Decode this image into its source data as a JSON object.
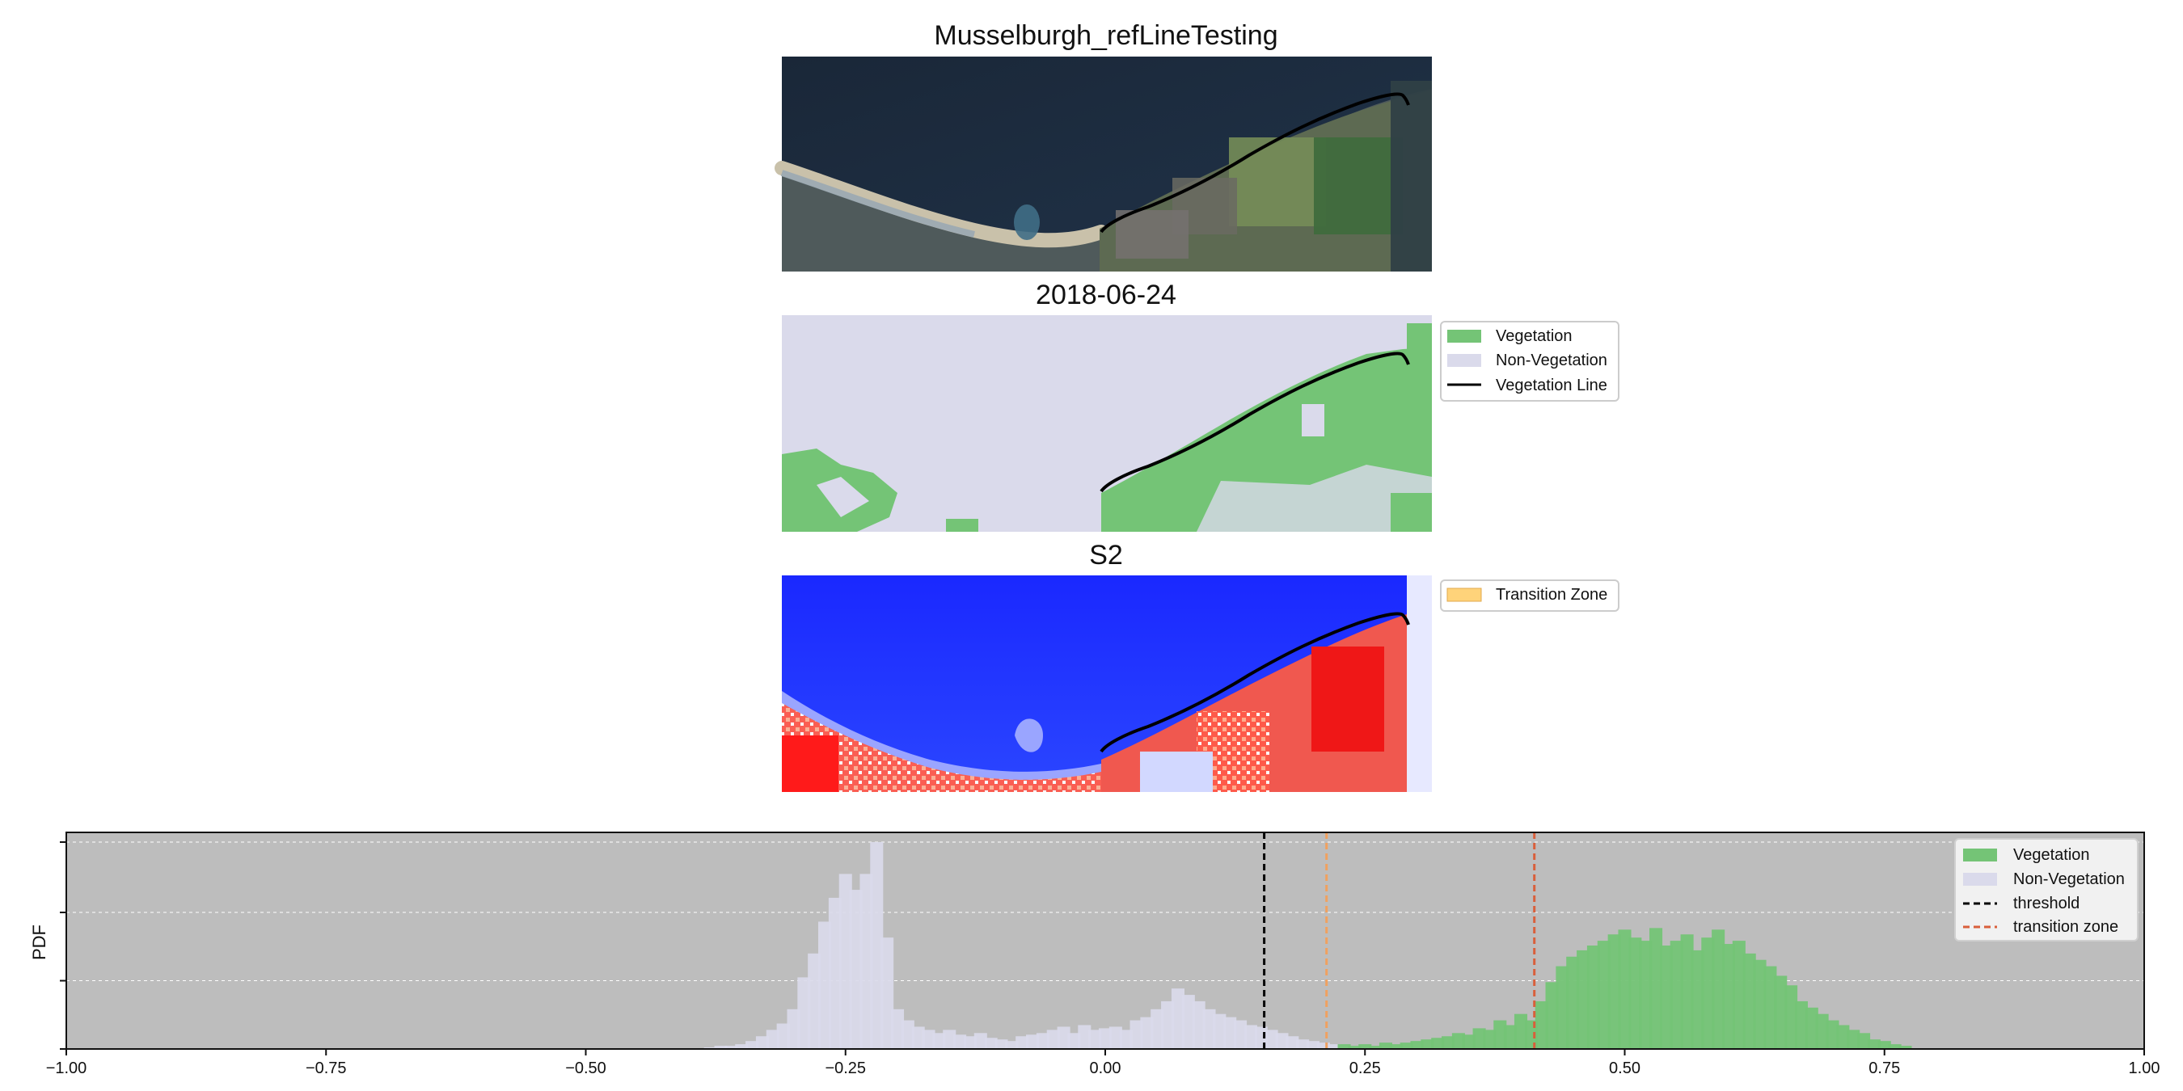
{
  "panels": [
    {
      "title": "Musselburgh_refLineTesting",
      "kind": "rgb-image"
    },
    {
      "title": "2018-06-24",
      "kind": "classification-map"
    },
    {
      "title": "S2",
      "kind": "index-map"
    }
  ],
  "class_legend": {
    "items": [
      {
        "label": "Vegetation",
        "type": "patch",
        "color": "#74c476"
      },
      {
        "label": "Non-Vegetation",
        "type": "patch",
        "color": "#dadaeb"
      },
      {
        "label": "Vegetation Line",
        "type": "line",
        "color": "#000000"
      }
    ]
  },
  "index_legend": {
    "items": [
      {
        "label": "Transition Zone",
        "type": "patch",
        "color": "#ffd37a"
      }
    ]
  },
  "colors": {
    "vegetation": "#74c476",
    "non_vegetation": "#dadaeb",
    "threshold": "#000000",
    "transition_zone": "#d95f3b",
    "transition_fill": "#ffd37a",
    "histogram_background": "#bdbdbd",
    "water_dark": "#1b2a3b",
    "index_low": "#1f2cff",
    "index_high": "#ff1f1f"
  },
  "chart_data": {
    "type": "histogram",
    "xlim": [
      -1.0,
      1.0
    ],
    "x_ticks": [
      -1.0,
      -0.75,
      -0.5,
      -0.25,
      0.0,
      0.25,
      0.5,
      0.75,
      1.0
    ],
    "x_tick_labels": [
      "−1.00",
      "−0.75",
      "−0.50",
      "−0.25",
      "0.00",
      "0.25",
      "0.50",
      "0.75",
      "1.00"
    ],
    "ylabel": "PDF",
    "grid": "horizontal, dashed, white",
    "legend_position": "top-right",
    "bin_width": 0.0125,
    "threshold": 0.153,
    "transition_zone": [
      0.213,
      0.413
    ],
    "series": [
      {
        "name": "Vegetation",
        "color": "#74c476",
        "bins": [
          [
            0.23,
            3
          ],
          [
            0.24,
            2
          ],
          [
            0.25,
            3
          ],
          [
            0.26,
            2
          ],
          [
            0.27,
            4
          ],
          [
            0.28,
            3
          ],
          [
            0.29,
            4
          ],
          [
            0.3,
            5
          ],
          [
            0.31,
            6
          ],
          [
            0.32,
            7
          ],
          [
            0.33,
            8
          ],
          [
            0.34,
            10
          ],
          [
            0.35,
            9
          ],
          [
            0.36,
            13
          ],
          [
            0.37,
            12
          ],
          [
            0.38,
            18
          ],
          [
            0.39,
            15
          ],
          [
            0.4,
            22
          ],
          [
            0.41,
            18
          ],
          [
            0.42,
            30
          ],
          [
            0.43,
            42
          ],
          [
            0.44,
            52
          ],
          [
            0.45,
            58
          ],
          [
            0.46,
            62
          ],
          [
            0.47,
            65
          ],
          [
            0.48,
            68
          ],
          [
            0.49,
            72
          ],
          [
            0.5,
            75
          ],
          [
            0.51,
            70
          ],
          [
            0.52,
            68
          ],
          [
            0.53,
            76
          ],
          [
            0.54,
            65
          ],
          [
            0.55,
            68
          ],
          [
            0.56,
            72
          ],
          [
            0.57,
            62
          ],
          [
            0.58,
            70
          ],
          [
            0.59,
            75
          ],
          [
            0.6,
            66
          ],
          [
            0.61,
            68
          ],
          [
            0.62,
            60
          ],
          [
            0.63,
            56
          ],
          [
            0.64,
            52
          ],
          [
            0.65,
            46
          ],
          [
            0.66,
            40
          ],
          [
            0.67,
            30
          ],
          [
            0.68,
            26
          ],
          [
            0.69,
            22
          ],
          [
            0.7,
            18
          ],
          [
            0.71,
            15
          ],
          [
            0.72,
            12
          ],
          [
            0.73,
            10
          ],
          [
            0.74,
            6
          ],
          [
            0.75,
            5
          ],
          [
            0.76,
            3
          ],
          [
            0.77,
            2
          ]
        ]
      },
      {
        "name": "Non-Vegetation",
        "color": "#dadaeb",
        "bins": [
          [
            -0.38,
            1
          ],
          [
            -0.37,
            2
          ],
          [
            -0.36,
            2
          ],
          [
            -0.35,
            3
          ],
          [
            -0.34,
            5
          ],
          [
            -0.33,
            8
          ],
          [
            -0.32,
            12
          ],
          [
            -0.31,
            16
          ],
          [
            -0.3,
            25
          ],
          [
            -0.29,
            45
          ],
          [
            -0.28,
            60
          ],
          [
            -0.27,
            80
          ],
          [
            -0.26,
            95
          ],
          [
            -0.25,
            110
          ],
          [
            -0.24,
            100
          ],
          [
            -0.23,
            110
          ],
          [
            -0.22,
            130
          ],
          [
            -0.21,
            70
          ],
          [
            -0.2,
            25
          ],
          [
            -0.19,
            18
          ],
          [
            -0.18,
            14
          ],
          [
            -0.17,
            12
          ],
          [
            -0.16,
            10
          ],
          [
            -0.15,
            12
          ],
          [
            -0.14,
            9
          ],
          [
            -0.13,
            8
          ],
          [
            -0.12,
            10
          ],
          [
            -0.11,
            7
          ],
          [
            -0.1,
            6
          ],
          [
            -0.09,
            5
          ],
          [
            -0.08,
            8
          ],
          [
            -0.07,
            9
          ],
          [
            -0.06,
            10
          ],
          [
            -0.05,
            12
          ],
          [
            -0.04,
            14
          ],
          [
            -0.03,
            10
          ],
          [
            -0.02,
            15
          ],
          [
            -0.01,
            12
          ],
          [
            0.0,
            13
          ],
          [
            0.01,
            14
          ],
          [
            0.02,
            12
          ],
          [
            0.03,
            18
          ],
          [
            0.04,
            20
          ],
          [
            0.05,
            25
          ],
          [
            0.06,
            30
          ],
          [
            0.07,
            38
          ],
          [
            0.08,
            34
          ],
          [
            0.09,
            30
          ],
          [
            0.1,
            25
          ],
          [
            0.11,
            22
          ],
          [
            0.12,
            20
          ],
          [
            0.13,
            18
          ],
          [
            0.14,
            15
          ],
          [
            0.15,
            14
          ],
          [
            0.16,
            12
          ],
          [
            0.17,
            10
          ],
          [
            0.18,
            8
          ],
          [
            0.19,
            6
          ],
          [
            0.2,
            5
          ],
          [
            0.21,
            4
          ],
          [
            0.22,
            3
          ],
          [
            0.23,
            2
          ],
          [
            0.24,
            2
          ],
          [
            0.25,
            1
          ]
        ]
      }
    ],
    "legend": [
      "Vegetation",
      "Non-Vegetation",
      "threshold",
      "transition zone"
    ]
  }
}
